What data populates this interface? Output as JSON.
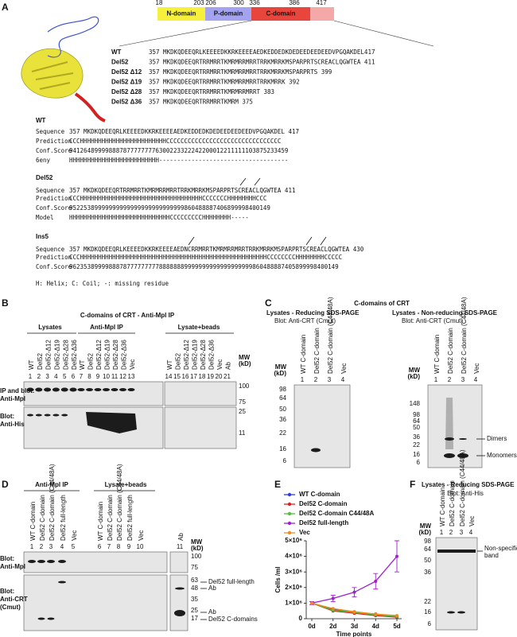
{
  "panel_a": {
    "label": "A",
    "domain_map": {
      "positions": [
        18,
        203,
        206,
        300,
        336,
        386,
        417
      ],
      "names": [
        "N-domain",
        "P-domain",
        "C-domain"
      ]
    },
    "alignment": [
      {
        "name": "WT",
        "sequence": "357 MKDKQDEEQRLKEEEEDKKRKEEEEAEDKEDDEDKDEDEEDEEDEEDVPGQAKDEL417"
      },
      {
        "name": "Del52",
        "sequence": "357 MKDKQDEEQRTRRMRRTKMRMRRMRRTRRKMRRKMSPARPRTSCREACLQGWTEA 411"
      },
      {
        "name": "Del52 Δ12",
        "sequence": "357 MKDKQDEEQRTRRMRRTKMRMRRMRRTRRKMRRKMSPARPRTS 399"
      },
      {
        "name": "Del52 Δ19",
        "sequence": "357 MKDKQDEEQRTRRMRRTKMRMRRMRRTRRKMRRK 392"
      },
      {
        "name": "Del52 Δ28",
        "sequence": "357 MKDKQDEEQRTRRMRRTKMRMRRMRRT 383"
      },
      {
        "name": "Del52 Δ36",
        "sequence": "357 MKDKQDEEQRTRRMRRTKMRM 375"
      }
    ],
    "predictions": [
      {
        "title": "WT",
        "rows": [
          {
            "label": "Sequence",
            "text": "357 MKDKQDEEQRLKEEEEDKKRKEEEEAEDKEDDEDKDEDEEDEEDEEDVPGQAKDEL 417"
          },
          {
            "label": "Prediction",
            "text": "CCCHHHHHHHHHHHHHHHHHHHHHHHHCCCCCCCCCCCCCCCCCCCCCCCCCCCCCCCC"
          },
          {
            "label": "Conf.Score",
            "text": "9412648999988878777777776300223322242200012211111103875233459"
          },
          {
            "label": "6eny",
            "text": "HHHHHHHHHHHHHHHHHHHHHHHHH------------------------------------"
          }
        ]
      },
      {
        "title": "Del52",
        "rows": [
          {
            "label": "Sequence",
            "text": "357 MKDKQDEEQRTRRMRRTKMRMRRMRRTRRKMRRKMSPARPRTSCREACLQGWTEA 411"
          },
          {
            "label": "Prediction",
            "text": "CCCHHHHHHHHHHHHHHHHHHHHHHHHHHHHHHHHHHCCCCCCCHHHHHHHHCCC"
          },
          {
            "label": "Conf.Score",
            "text": "95225389999999999999999999999999860488887406899998400149"
          },
          {
            "label": "Model",
            "text": "HHHHHHHHHHHHHHHHHHHHHHHHHHHHCCCCCCCCCHHHHHHHH-----"
          }
        ]
      },
      {
        "title": "Ins5",
        "rows": [
          {
            "label": "Sequence",
            "text": "357 MKDKQDEEQRLKEEEEDKKRKEEEEAEDNCRRMRRTKMRMRRMRRTRRKMRRKMSPARPRTSCREACLQGWTEA 430"
          },
          {
            "label": "Prediction",
            "text": "CCCHHHHHHHHHHHHHHHHHHHHHHHHHHHHHHHHHHHHHHHHHHHHHHHHHHHHCCCCCCCCHHHHHHHHCCCCC"
          },
          {
            "label": "Conf.Score",
            "text": "962353899998887877777777788888889999999999999999999860488887405899998400149"
          }
        ]
      }
    ],
    "legend": "H: Helix; C: Coil; -: missing residue"
  },
  "panel_b": {
    "label": "B",
    "title": "C-domains of CRT - Anti-Mpl IP",
    "groups": [
      "Lysates",
      "Anti-Mpl IP",
      "Lysate+beads"
    ],
    "lanes": [
      "WT",
      "Del52",
      "Del52-Δ12",
      "Del52-Δ19",
      "Del52-Δ28",
      "Del52-Δ36",
      "WT",
      "Del52",
      "Del52-Δ12",
      "Del52-Δ19",
      "Del52-Δ28",
      "Del52-Δ36",
      "Vec",
      "WT",
      "Del52",
      "Del52-Δ12",
      "Del52-Δ19",
      "Del52-Δ28",
      "Del52-Δ36",
      "Vec",
      "Ab"
    ],
    "numbers": [
      1,
      2,
      3,
      4,
      5,
      6,
      7,
      8,
      9,
      10,
      11,
      12,
      13,
      14,
      15,
      16,
      17,
      18,
      19,
      20,
      21
    ],
    "mw_label": [
      "MW",
      "(kD)"
    ],
    "mw": [
      100,
      75,
      25,
      11
    ],
    "rows": [
      [
        "IP and blot:",
        "Anti-Mpl"
      ],
      [
        "Blot:",
        "Anti-His"
      ]
    ]
  },
  "panel_c": {
    "label": "C",
    "title": "C-domains of CRT",
    "left": {
      "subtitle": "Lysates - Reducing SDS-PAGE",
      "blot": "Blot: Anti-CRT (Cmut)",
      "lanes": [
        "WT C-domain",
        "Del52 C-domain",
        "Del52 C-domain (C44/48A)",
        "Vec"
      ],
      "numbers": [
        1,
        2,
        3,
        4
      ],
      "mw_label": [
        "MW",
        "(kD)"
      ],
      "mw": [
        98,
        64,
        50,
        36,
        22,
        16,
        6
      ]
    },
    "right": {
      "subtitle": "Lysates - Non-reducing SDS-PAGE",
      "blot": "Blot: Anti-CRT (Cmut)",
      "lanes": [
        "WT C-domain",
        "Del52 C-domain",
        "Del52 C-domain (C44/48A)",
        "Vec"
      ],
      "numbers": [
        1,
        2,
        3,
        4
      ],
      "mw_label": [
        "MW",
        "(kD)"
      ],
      "mw": [
        148,
        98,
        64,
        50,
        36,
        22,
        16,
        6
      ],
      "annotations": [
        "Dimers",
        "Monomers"
      ]
    }
  },
  "panel_d": {
    "label": "D",
    "groups": [
      "Anti-Mpl IP",
      "Lysate+beads"
    ],
    "lanes": [
      "WT C-domain",
      "Del52 C-domain",
      "Del52 C-domain (C44/48A)",
      "Del52 full-length",
      "Vec",
      "WT C-domain",
      "Del52 C-domain",
      "Del52 C-domain (C44/48A)",
      "Del52 full-length",
      "Vec",
      "Ab"
    ],
    "numbers": [
      1,
      2,
      3,
      4,
      5,
      6,
      7,
      8,
      9,
      10,
      11
    ],
    "mw_label": [
      "MW",
      "(kD)"
    ],
    "mw": [
      100,
      75,
      63,
      48,
      35,
      25,
      17
    ],
    "annotations": [
      "Del52 full-length",
      "Ab",
      "Ab",
      "Del52 C-domains"
    ],
    "rows": [
      [
        "Blot:",
        "Anti-Mpl"
      ],
      [
        "Blot:",
        "Anti-CRT",
        "(Cmut)"
      ]
    ]
  },
  "panel_e": {
    "label": "E"
  },
  "chart_data": {
    "type": "line",
    "ylabel": "Cells /ml",
    "xlabel": "Time points",
    "categories": [
      "0d",
      "2d",
      "3d",
      "4d",
      "5d"
    ],
    "ylim": [
      0,
      5000000
    ],
    "yticks": [
      0,
      {
        "value": 1000000,
        "label": "1×10⁶"
      },
      {
        "value": 2000000,
        "label": "2×10⁶"
      },
      {
        "value": 3000000,
        "label": "3×10⁶"
      },
      {
        "value": 4000000,
        "label": "4×10⁶"
      },
      {
        "value": 5000000,
        "label": "5×10⁶"
      }
    ],
    "series": [
      {
        "name": "WT C-domain",
        "color": "#2f3fd8",
        "values": [
          1000000,
          600000,
          400000,
          300000,
          150000
        ]
      },
      {
        "name": "Del52 C-domain",
        "color": "#e0201c",
        "values": [
          1000000,
          500000,
          350000,
          200000,
          100000
        ]
      },
      {
        "name": "Del52 C-domain C44/48A",
        "color": "#4fc03a",
        "values": [
          1000000,
          550000,
          400000,
          250000,
          150000
        ]
      },
      {
        "name": "Del52 full-length",
        "color": "#a020d0",
        "values": [
          1000000,
          1300000,
          1700000,
          2400000,
          4000000
        ],
        "errors": [
          100000,
          200000,
          300000,
          500000,
          1000000
        ]
      },
      {
        "name": "Vec",
        "color": "#f08a1c",
        "values": [
          1000000,
          650000,
          450000,
          300000,
          200000
        ]
      }
    ]
  },
  "panel_f": {
    "label": "F",
    "subtitle": "Lysates - Reducing SDS-PAGE",
    "blot": "Blot: Anti-His",
    "lanes": [
      "WT C-domain",
      "Del52 C-domain",
      "Del52 C-domain (C44/48A)",
      "Vec"
    ],
    "numbers": [
      1,
      2,
      3,
      4
    ],
    "mw_label": [
      "MW",
      "(kD)"
    ],
    "mw": [
      98,
      64,
      50,
      36,
      22,
      16,
      6
    ],
    "annotation": [
      "Non-specific",
      "band"
    ]
  }
}
